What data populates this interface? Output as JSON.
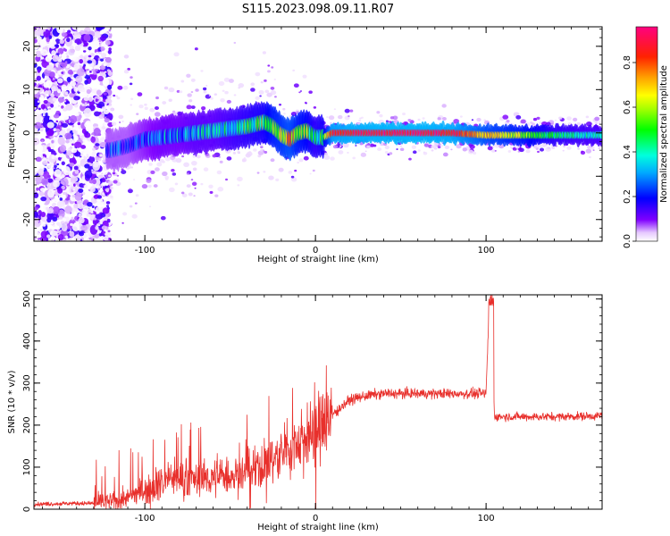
{
  "title": "S115.2023.098.09.11.R07",
  "colors": {
    "snr_line": "#e8302c",
    "axis": "#000000",
    "background": "#ffffff"
  },
  "chart_data": [
    {
      "type": "heatmap",
      "xlabel": "Height of straight line (km)",
      "ylabel": "Frequency (Hz)",
      "xlim": [
        -165,
        168
      ],
      "ylim": [
        -25,
        24.5
      ],
      "xticks": [
        -100,
        0,
        100
      ],
      "yticks": [
        -20,
        -10,
        0,
        10,
        20
      ],
      "colorbar": {
        "label": "Normalized spectral amplitude",
        "range": [
          0.0,
          0.96
        ],
        "ticks": [
          "0.0",
          "0.2",
          "0.4",
          "0.6",
          "0.8"
        ],
        "colormap": "gist_ncar-like rainbow (white to purple, blue, cyan, green, yellow, orange, red, magenta)"
      },
      "dominant_frequency_trace": {
        "x": [
          -120,
          -110,
          -100,
          -90,
          -80,
          -70,
          -60,
          -50,
          -40,
          -30,
          -25,
          -20,
          -15,
          -10,
          -5,
          0,
          5,
          10,
          20,
          40,
          60,
          80,
          100,
          120,
          140,
          160
        ],
        "y": [
          -4,
          -3,
          -1.5,
          -1,
          -0.5,
          0,
          0.5,
          1,
          1.5,
          2.5,
          1.5,
          -0.5,
          -1.5,
          0,
          0.5,
          -1,
          -1,
          0,
          0,
          0,
          0,
          0,
          -0.5,
          -0.5,
          -0.5,
          -0.5
        ],
        "amplitude": [
          0.2,
          0.2,
          0.25,
          0.3,
          0.3,
          0.35,
          0.35,
          0.4,
          0.45,
          0.5,
          0.6,
          0.65,
          0.7,
          0.6,
          0.55,
          0.45,
          0.5,
          0.85,
          0.88,
          0.9,
          0.9,
          0.88,
          0.7,
          0.6,
          0.45,
          0.4
        ]
      }
    },
    {
      "type": "line",
      "xlabel": "Height of straight line (km)",
      "ylabel": "SNR (10 * v/v)",
      "xlim": [
        -165,
        168
      ],
      "ylim": [
        0,
        510
      ],
      "xticks": [
        -100,
        0,
        100
      ],
      "yticks": [
        0,
        100,
        200,
        300,
        400,
        500
      ],
      "series": [
        {
          "x": [
            -165,
            -140,
            -130,
            -120,
            -110,
            -100,
            -95,
            -90,
            -80,
            -70,
            -60,
            -50,
            -40,
            -30,
            -25,
            -20,
            -15,
            -10,
            -5,
            0,
            10,
            20,
            30,
            40,
            60,
            80,
            100,
            102,
            103,
            104,
            105,
            120,
            140,
            168
          ],
          "y": [
            12,
            14,
            14,
            18,
            28,
            45,
            55,
            65,
            75,
            70,
            75,
            80,
            85,
            100,
            120,
            130,
            150,
            160,
            170,
            180,
            225,
            260,
            270,
            275,
            275,
            275,
            275,
            510,
            500,
            300,
            220,
            220,
            220,
            222
          ]
        }
      ]
    }
  ]
}
